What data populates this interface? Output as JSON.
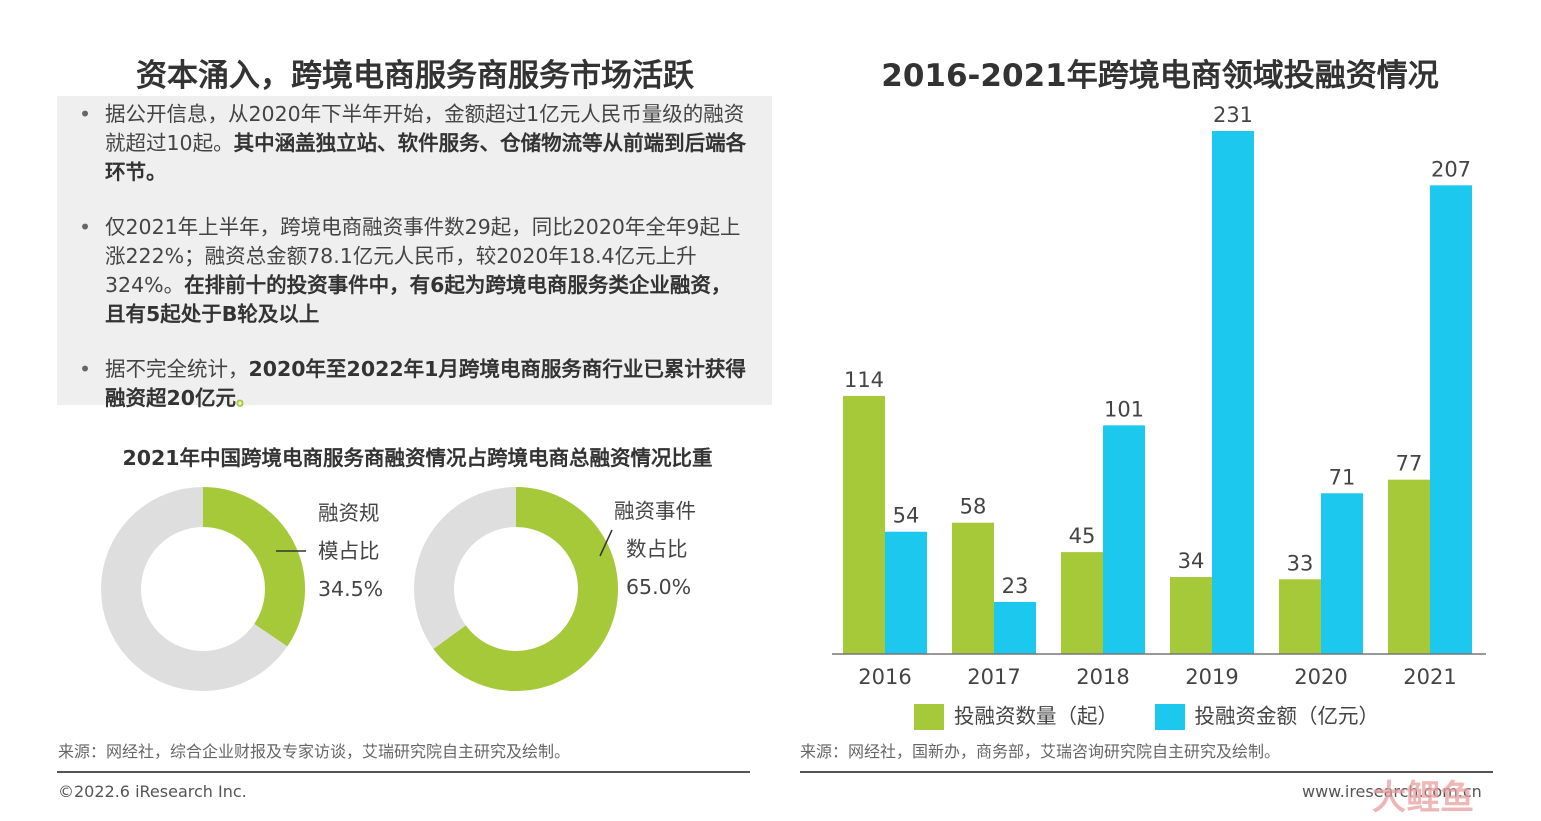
{
  "left_title": "资本涌入，跨境电商服务商服务市场活跃",
  "right_title": "2016-2021年跨境电商领域投融资情况",
  "bullets": [
    {
      "plain": "据公开信息，从2020年下半年开始，金额超过1亿元人民币量级的融资就超过10起。",
      "bold": "其中涵盖独立站、软件服务、仓储物流等从前端到后端各环节。",
      "tail": ""
    },
    {
      "plain": "仅2021年上半年，跨境电商融资事件数29起，同比2020年全年9起上涨222%；融资总金额78.1亿元人民币，较2020年18.4亿元上升324%。",
      "bold": "在排前十的投资事件中，有6起为跨境电商服务类企业融资，且有5起处于B轮及以上",
      "tail": ""
    },
    {
      "plain": "据不完全统计，",
      "bold": "2020年至2022年1月跨境电商服务商行业已累计获得融资超20亿元",
      "tail": "。"
    }
  ],
  "donut_title": "2021年中国跨境电商服务商融资情况占跨境电商总融资情况比重",
  "donuts": [
    {
      "label_line1": "融资规",
      "label_line2": "模占比",
      "value_text": "34.5%",
      "value": 0.345
    },
    {
      "label_line1": "融资事件",
      "label_line2": "数占比",
      "value_text": "65.0%",
      "value": 0.65
    }
  ],
  "left_source": "来源：网经社，综合企业财报及专家访谈，艾瑞研究院自主研究及绘制。",
  "right_source": "来源：网经社，国新办，商务部，艾瑞咨询研究院自主研究及绘制。",
  "copyright": "©2022.6 iResearch Inc.",
  "website": "www.iresearch.com.cn",
  "watermark": "大鲤鱼",
  "colors": {
    "green": "#a6c93a",
    "blue": "#1dc8ee",
    "gray": "#dedede"
  },
  "chart_data": {
    "type": "bar",
    "title": "2016-2021年跨境电商领域投融资情况",
    "categories": [
      "2016",
      "2017",
      "2018",
      "2019",
      "2020",
      "2021"
    ],
    "series": [
      {
        "name": "投融资数量（起）",
        "values": [
          114,
          58,
          45,
          34,
          33,
          77
        ]
      },
      {
        "name": "投融资金额（亿元）",
        "values": [
          54,
          23,
          101,
          231,
          71,
          207
        ]
      }
    ],
    "ylim": [
      0,
      231
    ],
    "grid": false,
    "legend": "bottom"
  }
}
